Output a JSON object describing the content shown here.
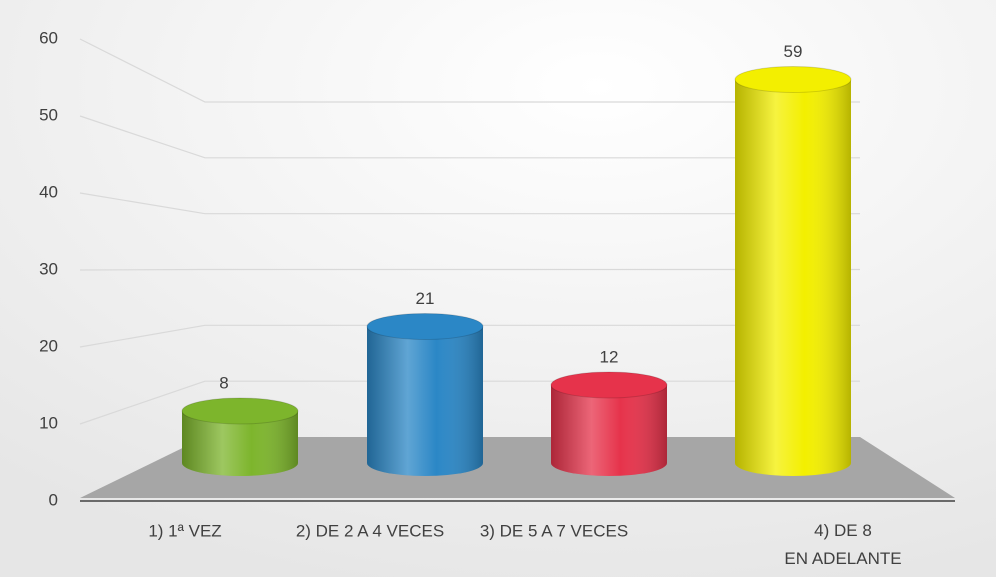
{
  "chart_data": {
    "type": "bar",
    "categories": [
      "1) 1ª  VEZ",
      "2) DE 2 A 4 VECES",
      "3) DE 5 A 7 VECES",
      "4) DE 8 EN ADELANTE"
    ],
    "values": [
      8,
      21,
      12,
      59
    ],
    "colors": [
      "#7db52c",
      "#2b87c6",
      "#e6334b",
      "#f3ef00"
    ],
    "ylim": [
      0,
      60
    ],
    "yticks": [
      0,
      10,
      20,
      30,
      40,
      50,
      60
    ],
    "grid": true
  }
}
